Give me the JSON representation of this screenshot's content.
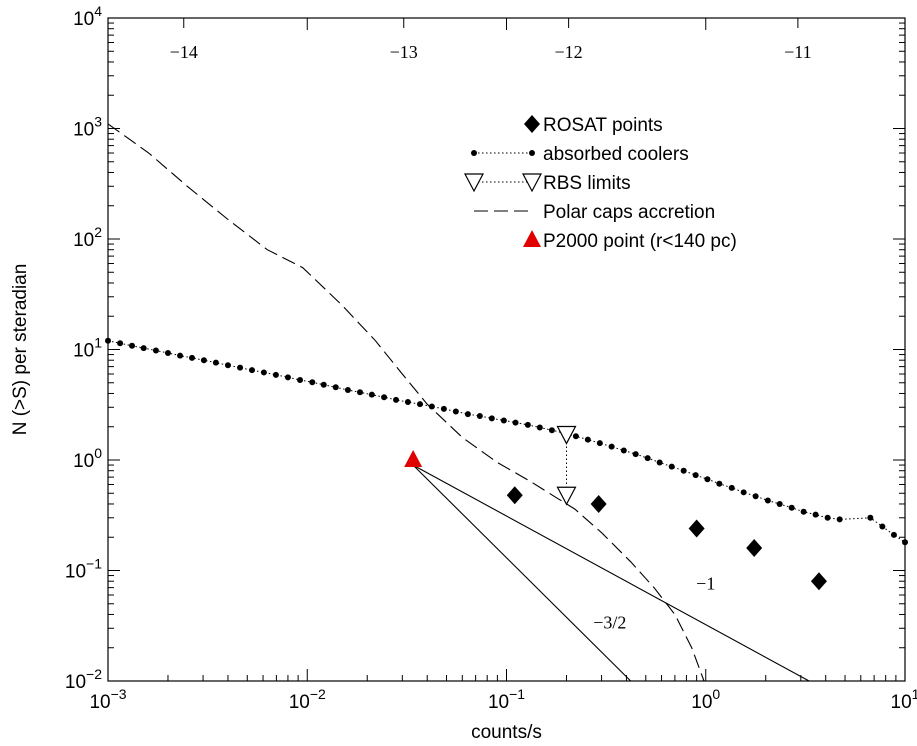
{
  "chart_data": {
    "type": "scatter",
    "xlabel": "counts/s",
    "ylabel": "N (>S)  per steradian",
    "xscale": "log",
    "yscale": "log",
    "xlim": [
      0.001,
      10
    ],
    "ylim": [
      0.01,
      10000
    ],
    "x_ticks": [
      {
        "value": 0.001,
        "base": "10",
        "exp": "−3"
      },
      {
        "value": 0.01,
        "base": "10",
        "exp": "−2"
      },
      {
        "value": 0.1,
        "base": "10",
        "exp": "−1"
      },
      {
        "value": 1,
        "base": "10",
        "exp": "0"
      },
      {
        "value": 10,
        "base": "10",
        "exp": "1"
      }
    ],
    "y_ticks": [
      {
        "value": 0.01,
        "base": "10",
        "exp": "−2"
      },
      {
        "value": 0.1,
        "base": "10",
        "exp": "−1"
      },
      {
        "value": 1,
        "base": "10",
        "exp": "0"
      },
      {
        "value": 10,
        "base": "10",
        "exp": "1"
      },
      {
        "value": 100,
        "base": "10",
        "exp": "2"
      },
      {
        "value": 1000,
        "base": "10",
        "exp": "3"
      },
      {
        "value": 10000,
        "base": "10",
        "exp": "4"
      }
    ],
    "top_axis_ticks": [
      {
        "value": 0.0024,
        "label": "−14"
      },
      {
        "value": 0.0305,
        "label": "−13"
      },
      {
        "value": 0.205,
        "label": "−12"
      },
      {
        "value": 2.9,
        "label": "−11"
      }
    ],
    "legend_position": "top-right",
    "legend": [
      {
        "label": "ROSAT points",
        "style": "diamond"
      },
      {
        "label": "absorbed coolers",
        "style": "dotted-dots"
      },
      {
        "label": "RBS limits",
        "style": "triangles-dotted"
      },
      {
        "label": "Polar caps accretion",
        "style": "dashed"
      },
      {
        "label": "P2000 point (r<140 pc)",
        "style": "red-triangle"
      }
    ],
    "series": [
      {
        "name": "ROSAT points",
        "marker": "diamond",
        "color": "#000000",
        "points": [
          [
            0.11,
            0.48
          ],
          [
            0.29,
            0.4
          ],
          [
            0.9,
            0.24
          ],
          [
            1.75,
            0.16
          ],
          [
            3.7,
            0.08
          ]
        ]
      },
      {
        "name": "absorbed coolers",
        "marker": "dot",
        "line": "dotted",
        "color": "#000000",
        "points": [
          [
            0.001,
            12.0
          ],
          [
            0.00115,
            11.4
          ],
          [
            0.00132,
            10.8
          ],
          [
            0.00151,
            10.3
          ],
          [
            0.00174,
            9.8
          ],
          [
            0.002,
            9.3
          ],
          [
            0.0023,
            8.8
          ],
          [
            0.00264,
            8.4
          ],
          [
            0.00303,
            8.0
          ],
          [
            0.00348,
            7.6
          ],
          [
            0.004,
            7.2
          ],
          [
            0.0046,
            6.85
          ],
          [
            0.00528,
            6.5
          ],
          [
            0.00606,
            6.2
          ],
          [
            0.00696,
            5.9
          ],
          [
            0.008,
            5.6
          ],
          [
            0.0092,
            5.3
          ],
          [
            0.0106,
            5.05
          ],
          [
            0.0121,
            4.8
          ],
          [
            0.0139,
            4.55
          ],
          [
            0.016,
            4.3
          ],
          [
            0.0184,
            4.1
          ],
          [
            0.0211,
            3.9
          ],
          [
            0.0243,
            3.7
          ],
          [
            0.0279,
            3.5
          ],
          [
            0.032,
            3.35
          ],
          [
            0.0368,
            3.2
          ],
          [
            0.0422,
            3.05
          ],
          [
            0.0485,
            2.9
          ],
          [
            0.0557,
            2.75
          ],
          [
            0.064,
            2.6
          ],
          [
            0.0735,
            2.5
          ],
          [
            0.0844,
            2.38
          ],
          [
            0.097,
            2.28
          ],
          [
            0.111,
            2.18
          ],
          [
            0.128,
            2.08
          ],
          [
            0.147,
            1.97
          ],
          [
            0.169,
            1.86
          ],
          [
            0.194,
            1.75
          ],
          [
            0.223,
            1.64
          ],
          [
            0.256,
            1.53
          ],
          [
            0.294,
            1.42
          ],
          [
            0.337,
            1.32
          ],
          [
            0.388,
            1.22
          ],
          [
            0.445,
            1.13
          ],
          [
            0.511,
            1.04
          ],
          [
            0.587,
            0.95
          ],
          [
            0.675,
            0.87
          ],
          [
            0.775,
            0.8
          ],
          [
            0.89,
            0.73
          ],
          [
            1.02,
            0.67
          ],
          [
            1.17,
            0.61
          ],
          [
            1.35,
            0.56
          ],
          [
            1.55,
            0.51
          ],
          [
            1.78,
            0.47
          ],
          [
            2.05,
            0.43
          ],
          [
            2.35,
            0.4
          ],
          [
            2.7,
            0.37
          ],
          [
            3.1,
            0.34
          ],
          [
            3.56,
            0.32
          ],
          [
            4.09,
            0.3
          ],
          [
            4.7,
            0.29
          ],
          [
            6.7,
            0.3
          ],
          [
            7.7,
            0.25
          ],
          [
            8.8,
            0.21
          ],
          [
            10.0,
            0.18
          ]
        ]
      },
      {
        "name": "RBS limits",
        "marker": "triangle-down-open",
        "line": "dotted",
        "color": "#000000",
        "points": [
          [
            0.2,
            1.7
          ],
          [
            0.2,
            0.48
          ]
        ]
      },
      {
        "name": "Polar caps accretion",
        "line": "dashed",
        "color": "#000000",
        "points": [
          [
            0.001,
            1100
          ],
          [
            0.0016,
            600
          ],
          [
            0.0025,
            300
          ],
          [
            0.004,
            150
          ],
          [
            0.0063,
            80
          ],
          [
            0.0095,
            55
          ],
          [
            0.015,
            25
          ],
          [
            0.022,
            12
          ],
          [
            0.03,
            6
          ],
          [
            0.04,
            3.2
          ],
          [
            0.06,
            1.6
          ],
          [
            0.09,
            0.95
          ],
          [
            0.13,
            0.65
          ],
          [
            0.18,
            0.45
          ],
          [
            0.22,
            0.36
          ],
          [
            0.3,
            0.22
          ],
          [
            0.42,
            0.12
          ],
          [
            0.55,
            0.07
          ],
          [
            0.7,
            0.04
          ],
          [
            0.85,
            0.02
          ],
          [
            0.98,
            0.01
          ]
        ]
      },
      {
        "name": "P2000 point (r<140 pc)",
        "marker": "triangle-up",
        "color": "#e00000",
        "points": [
          [
            0.034,
            1.0
          ]
        ]
      }
    ],
    "reference_lines": [
      {
        "label": "−1",
        "points": [
          [
            0.034,
            0.9
          ],
          [
            3.3,
            0.01
          ]
        ],
        "label_at": [
          1.0,
          0.067
        ]
      },
      {
        "label": "−3/2",
        "points": [
          [
            0.034,
            0.9
          ],
          [
            0.42,
            0.01
          ]
        ],
        "label_at": [
          0.33,
          0.03
        ]
      }
    ]
  }
}
